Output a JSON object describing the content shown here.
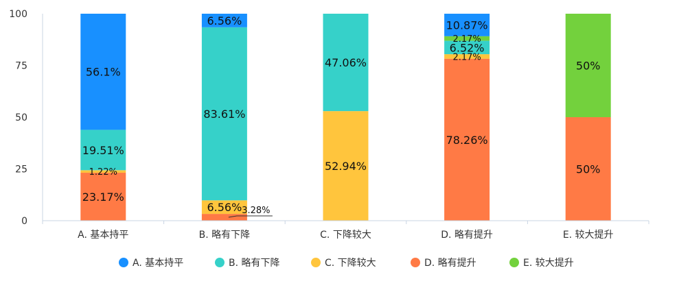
{
  "chart_data": {
    "type": "bar",
    "stacked": true,
    "categories": [
      "A. 基本持平",
      "B. 略有下降",
      "C. 下降较大",
      "D. 略有提升",
      "E. 较大提升"
    ],
    "ylim": [
      0,
      100
    ],
    "yticks": [
      "0",
      "25",
      "50",
      "75",
      "100"
    ],
    "grid": false,
    "legend_position": "bottom",
    "series": [
      {
        "name": "A. 基本持平",
        "color": "#1890FF",
        "values": [
          56.1,
          0,
          0,
          0,
          0
        ],
        "labels": [
          "56.1%",
          "",
          "",
          "",
          ""
        ]
      },
      {
        "name": "B. 略有下降",
        "color": "#36D1C9",
        "values": [
          19.51,
          83.61,
          47.06,
          6.52,
          0
        ],
        "labels": [
          "19.51%",
          "83.61%",
          "47.06%",
          "6.52%",
          ""
        ]
      },
      {
        "name": "C. 下降较大",
        "color": "#FFC53D",
        "values": [
          1.22,
          6.56,
          52.94,
          2.17,
          0
        ],
        "labels": [
          "1.22%",
          "6.56%",
          "52.94%",
          "2.17%",
          ""
        ]
      },
      {
        "name": "D. 略有提升",
        "color": "#FF7A45",
        "values": [
          23.17,
          3.28,
          0,
          78.26,
          50
        ],
        "labels": [
          "23.17%",
          "3.28%",
          "",
          "78.26%",
          "50%"
        ]
      },
      {
        "name": "E. 较大提升",
        "color": "#73D13D",
        "values": [
          0,
          0,
          0,
          2.17,
          50
        ],
        "labels": [
          "",
          "",
          "",
          "2.17%",
          "50%"
        ]
      }
    ],
    "stack_order_bottom_to_top": [
      3,
      2,
      1,
      0,
      4
    ],
    "top_segments": [
      {
        "category": 1,
        "value": 6.56,
        "label": "6.56%",
        "color": "#1890FF"
      },
      {
        "category": 3,
        "value": 10.87,
        "label": "10.87%",
        "color": "#1890FF"
      }
    ]
  }
}
